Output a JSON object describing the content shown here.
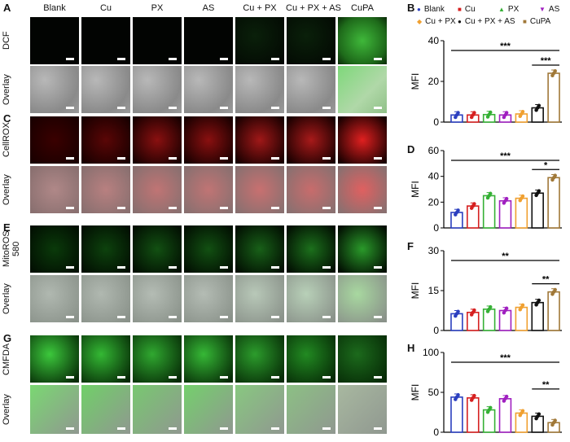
{
  "column_headers": [
    "Blank",
    "Cu",
    "PX",
    "AS",
    "Cu + PX",
    "Cu + PX + AS",
    "CuPA"
  ],
  "panel_letters": {
    "A": "A",
    "B": "B",
    "C": "C",
    "D": "D",
    "E": "E",
    "F": "F",
    "G": "G",
    "H": "H"
  },
  "row_labels": [
    "DCF",
    "Overlay",
    "CellROX",
    "Overlay",
    "MitoROS 580",
    "Overlay",
    "CMFDA",
    "Overlay"
  ],
  "legend": [
    "Blank",
    "Cu",
    "PX",
    "AS",
    "Cu + PX",
    "Cu + PX + AS",
    "CuPA"
  ],
  "colors": {
    "Blank": "#2b3fbf",
    "Cu": "#d62020",
    "PX": "#35b035",
    "AS": "#a020c0",
    "Cu + PX": "#f0a030",
    "Cu + PX + AS": "#111111",
    "CuPA": "#a07838"
  },
  "chart_data": [
    {
      "type": "bar",
      "panel": "B",
      "ylabel": "MFI",
      "ylim": [
        0,
        40
      ],
      "yticks": [
        "0",
        "20",
        "40"
      ],
      "categories": [
        "Blank",
        "Cu",
        "PX",
        "AS",
        "Cu + PX",
        "Cu + PX + AS",
        "CuPA"
      ],
      "values": [
        3.5,
        3.5,
        3.7,
        3.5,
        4.0,
        7.0,
        24.0
      ],
      "sig": [
        {
          "from": 0,
          "to": 6,
          "label": "***"
        },
        {
          "from": 5,
          "to": 6,
          "label": "***"
        }
      ]
    },
    {
      "type": "bar",
      "panel": "D",
      "ylabel": "MFI",
      "ylim": [
        0,
        60
      ],
      "yticks": [
        "0",
        "20",
        "40",
        "60"
      ],
      "categories": [
        "Blank",
        "Cu",
        "PX",
        "AS",
        "Cu + PX",
        "Cu + PX + AS",
        "CuPA"
      ],
      "values": [
        12,
        17,
        25,
        21,
        23,
        27,
        39
      ],
      "sig": [
        {
          "from": 0,
          "to": 6,
          "label": "***"
        },
        {
          "from": 5,
          "to": 6,
          "label": "*"
        }
      ]
    },
    {
      "type": "bar",
      "panel": "F",
      "ylabel": "MFI",
      "ylim": [
        0,
        30
      ],
      "yticks": [
        "0",
        "15",
        "30"
      ],
      "categories": [
        "Blank",
        "Cu",
        "PX",
        "AS",
        "Cu + PX",
        "Cu + PX + AS",
        "CuPA"
      ],
      "values": [
        6.3,
        6.8,
        8.0,
        7.5,
        8.7,
        10.5,
        14.5
      ],
      "sig": [
        {
          "from": 0,
          "to": 6,
          "label": "**"
        },
        {
          "from": 5,
          "to": 6,
          "label": "**"
        }
      ]
    },
    {
      "type": "bar",
      "panel": "H",
      "ylabel": "MFI",
      "ylim": [
        0,
        100
      ],
      "yticks": [
        "0",
        "50",
        "100"
      ],
      "categories": [
        "Blank",
        "Cu",
        "PX",
        "AS",
        "Cu + PX",
        "Cu + PX + AS",
        "CuPA"
      ],
      "values": [
        44,
        43,
        28,
        42,
        24,
        20,
        12
      ],
      "sig": [
        {
          "from": 0,
          "to": 6,
          "label": "***"
        },
        {
          "from": 5,
          "to": 6,
          "label": "**"
        }
      ]
    }
  ]
}
